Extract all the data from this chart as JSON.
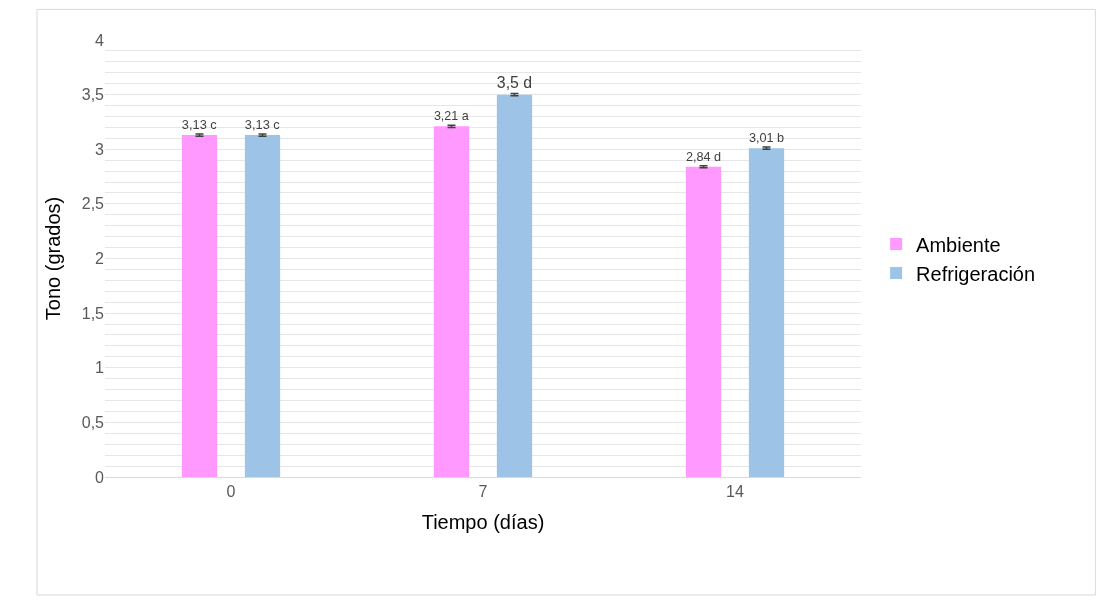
{
  "chart_data": {
    "type": "bar",
    "xlabel": "Tiempo (días)",
    "ylabel": "Tono (grados)",
    "categories": [
      "0",
      "7",
      "14"
    ],
    "series": [
      {
        "name": "Ambiente",
        "color": "#ff99ff",
        "values": [
          3.13,
          3.21,
          2.84
        ],
        "errors": [
          0.01,
          0.01,
          0.01
        ],
        "value_labels": [
          "3,13 c",
          "3,21 a",
          "2,84 d"
        ]
      },
      {
        "name": "Refrigeración",
        "color": "#9dc3e6",
        "values": [
          3.13,
          3.5,
          3.01
        ],
        "errors": [
          0.01,
          0.01,
          0.01
        ],
        "value_labels": [
          "3,13 c",
          "3,5 d",
          "3,01 b"
        ]
      }
    ],
    "ylim": [
      0,
      4
    ],
    "yticks": [
      0,
      {
        "value": 0.1,
        "label": null
      },
      {
        "value": 0.2,
        "label": null
      },
      {
        "value": 0.3,
        "label": null
      },
      {
        "value": 0.4,
        "label": null
      },
      {
        "value": 0.5,
        "label": "0,5"
      },
      {
        "value": 0.6,
        "label": null
      },
      {
        "value": 0.7,
        "label": null
      },
      {
        "value": 0.8,
        "label": null
      },
      {
        "value": 0.9,
        "label": null
      },
      1,
      {
        "value": 1.1,
        "label": null
      },
      {
        "value": 1.2,
        "label": null
      },
      {
        "value": 1.3,
        "label": null
      },
      {
        "value": 1.4,
        "label": null
      },
      {
        "value": 1.5,
        "label": "1,5"
      },
      {
        "value": 1.6,
        "label": null
      },
      {
        "value": 1.7,
        "label": null
      },
      {
        "value": 1.8,
        "label": null
      },
      {
        "value": 1.9,
        "label": null
      },
      2,
      {
        "value": 2.1,
        "label": null
      },
      {
        "value": 2.2,
        "label": null
      },
      {
        "value": 2.3,
        "label": null
      },
      {
        "value": 2.4,
        "label": null
      },
      {
        "value": 2.5,
        "label": "2,5"
      },
      {
        "value": 2.6,
        "label": null
      },
      {
        "value": 2.7,
        "label": null
      },
      {
        "value": 2.8,
        "label": null
      },
      {
        "value": 2.9,
        "label": null
      },
      3,
      {
        "value": 3.1,
        "label": null
      },
      {
        "value": 3.2,
        "label": null
      },
      {
        "value": 3.3,
        "label": null
      },
      {
        "value": 3.4,
        "label": null
      },
      {
        "value": 3.5,
        "label": "3,5"
      },
      {
        "value": 3.6,
        "label": null
      },
      {
        "value": 3.7,
        "label": null
      },
      {
        "value": 3.8,
        "label": null
      },
      {
        "value": 3.9,
        "label": null
      },
      4
    ],
    "grid": "y",
    "legend": "right"
  }
}
